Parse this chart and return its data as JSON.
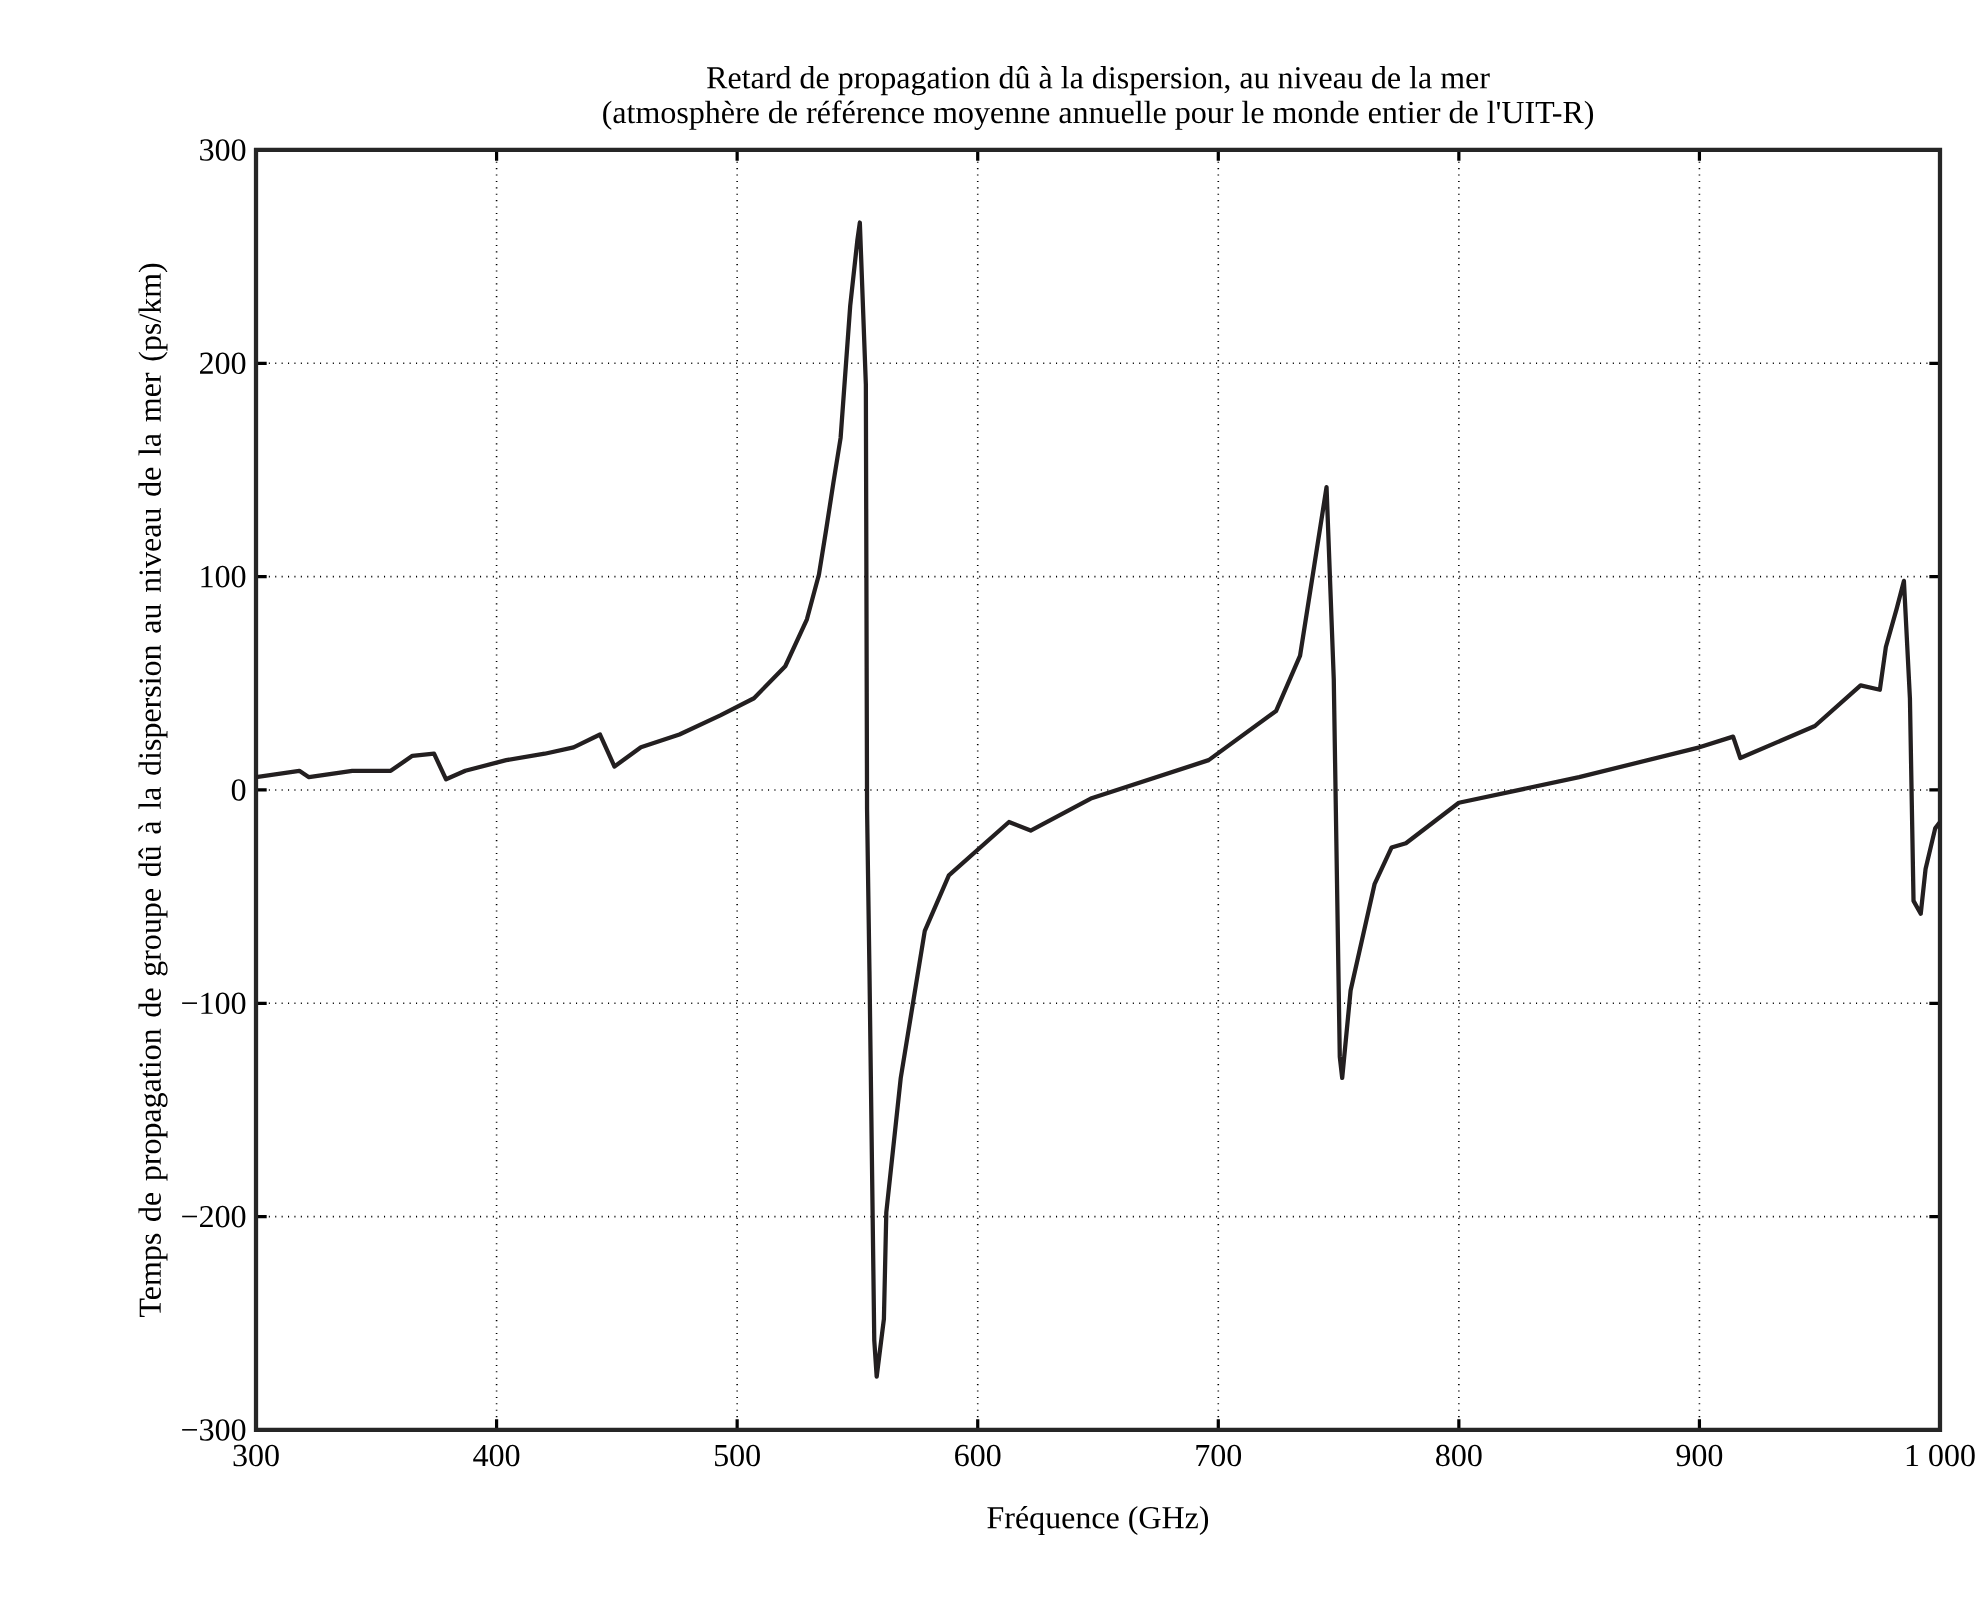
{
  "chart_data": {
    "type": "line",
    "title": "Retard de propagation dû à la dispersion, au niveau de la mer",
    "subtitle": "(atmosphère de référence moyenne annuelle pour le monde entier de l'UIT-R)",
    "xlabel": "Fréquence (GHz)",
    "ylabel": "Temps de propagation de groupe dû à la dispersion au niveau de la mer (ps/km)",
    "xlim": [
      300,
      1000
    ],
    "ylim": [
      -300,
      300
    ],
    "xticks": [
      300,
      400,
      500,
      600,
      700,
      800,
      900,
      {
        "value": 1000,
        "label": "1 000"
      }
    ],
    "yticks": [
      {
        "value": -300,
        "label": "−300"
      },
      {
        "value": -200,
        "label": "−200"
      },
      {
        "value": -100,
        "label": "−100"
      },
      0,
      100,
      200,
      300
    ],
    "grid": true,
    "marker": "none",
    "line_style": "solid",
    "series": [
      {
        "color": "#231f20",
        "x": [
          300,
          318,
          322,
          340,
          356,
          365,
          374,
          379,
          387,
          404,
          420,
          432,
          443,
          449,
          460,
          476,
          493,
          507,
          520,
          529,
          534,
          537,
          540,
          543,
          547,
          550,
          551,
          553.5,
          554,
          555,
          557,
          558,
          561,
          562,
          568,
          578,
          588,
          613,
          622,
          647,
          696,
          724,
          734,
          740,
          745,
          748,
          750.5,
          751.5,
          755,
          765,
          772,
          778,
          800,
          850,
          900,
          914,
          917,
          948,
          967,
          975,
          977.5,
          982,
          985,
          987.5,
          989,
          992,
          994,
          998,
          1000
        ],
        "values": [
          6,
          9,
          6,
          9,
          9,
          16,
          17,
          5,
          9,
          14,
          17,
          20,
          26,
          11,
          20,
          26,
          35,
          43,
          58,
          80,
          101,
          122,
          144,
          165,
          227,
          258,
          266,
          190,
          -9,
          -85,
          -258,
          -275,
          -248,
          -198,
          -135,
          -66,
          -40,
          -15,
          -19,
          -4,
          14,
          37,
          63,
          106,
          142,
          52,
          -125,
          -135,
          -94,
          -44,
          -27,
          -25,
          -6,
          6,
          20,
          25,
          15,
          30,
          49,
          47,
          67,
          85,
          98,
          43,
          -52,
          -58,
          -37,
          -18,
          -15
        ]
      }
    ]
  }
}
